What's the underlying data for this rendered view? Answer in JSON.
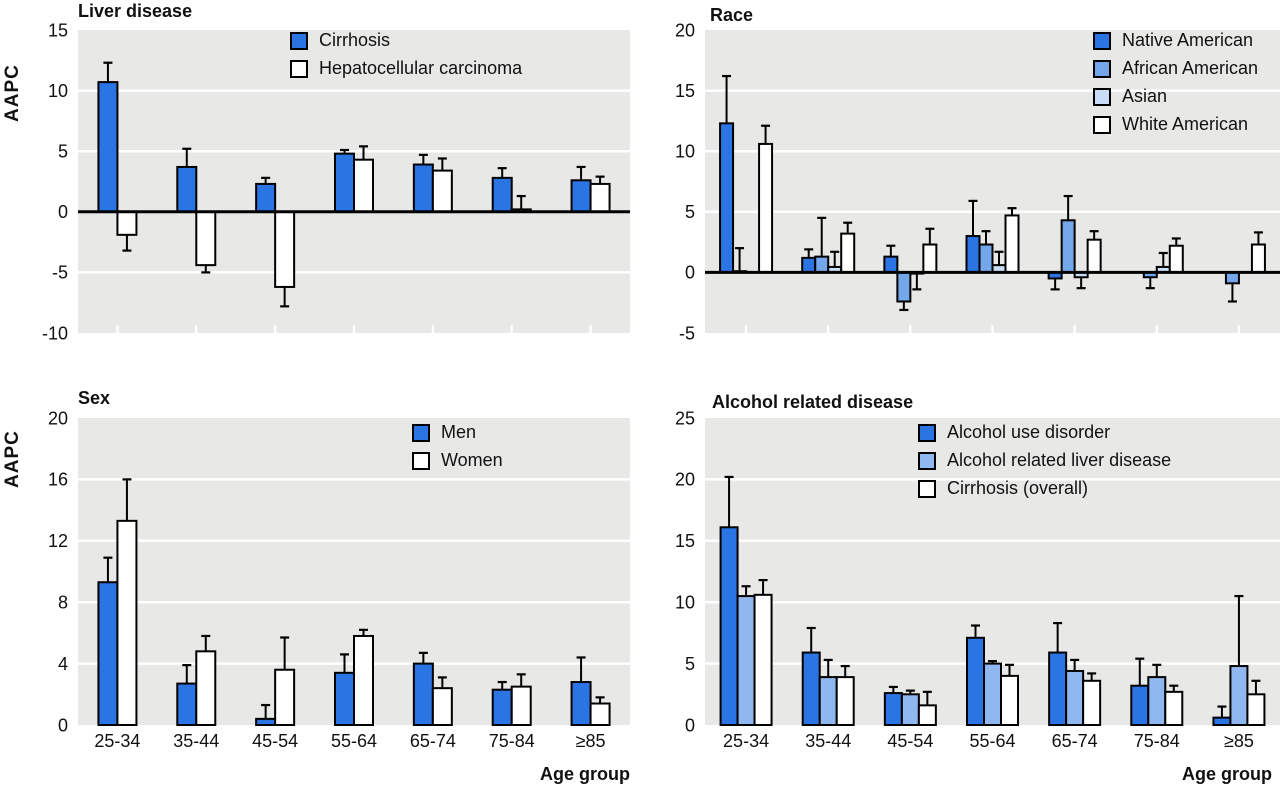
{
  "ylabel": "AAPC",
  "xlabel": "Age group",
  "categories": [
    "25-34",
    "35-44",
    "45-54",
    "55-64",
    "65-74",
    "75-84",
    "≥85"
  ],
  "colors": {
    "blue": "#2B74E4",
    "medium_blue": "#74A6EA",
    "pale_blue": "#C9DDF6",
    "light_blue": "#8FB8F0",
    "white": "#FFFFFF",
    "plot_bg": "#E8E8E7",
    "grid": "#FFFFFF",
    "axis": "#000000",
    "text": "#111111"
  },
  "chart_data": [
    {
      "type": "bar",
      "title": "Liver disease",
      "ylabel": "AAPC",
      "xlabel": "Age group",
      "ylim": [
        -10,
        15
      ],
      "yticks": [
        15,
        10,
        5,
        0,
        -5,
        -10
      ],
      "grid": true,
      "legend_position": "top-right-inside",
      "categories": [
        "25-34",
        "35-44",
        "45-54",
        "55-64",
        "65-74",
        "75-84",
        "≥85"
      ],
      "series": [
        {
          "name": "Cirrhosis",
          "color_key": "blue",
          "values": [
            10.7,
            3.7,
            2.3,
            4.8,
            3.9,
            2.8,
            2.6
          ],
          "ci": [
            12.3,
            5.2,
            2.8,
            5.1,
            4.7,
            3.6,
            3.7
          ]
        },
        {
          "name": "Hepatocellular carcinoma",
          "color_key": "white",
          "values": [
            -1.9,
            -4.4,
            -6.2,
            4.3,
            3.4,
            0.2,
            2.3
          ],
          "ci": [
            -3.2,
            -5.0,
            -7.8,
            5.4,
            4.4,
            1.3,
            2.9
          ]
        }
      ]
    },
    {
      "type": "bar",
      "title": "Race",
      "ylabel": "AAPC",
      "xlabel": "Age group",
      "ylim": [
        -5,
        20
      ],
      "yticks": [
        20,
        15,
        10,
        5,
        0,
        -5
      ],
      "grid": true,
      "legend_position": "top-right-inside",
      "categories": [
        "25-34",
        "35-44",
        "45-54",
        "55-64",
        "65-74",
        "75-84",
        "≥85"
      ],
      "series": [
        {
          "name": "Native American",
          "color_key": "blue",
          "values": [
            12.3,
            1.2,
            1.3,
            3.0,
            -0.5,
            null,
            null
          ],
          "ci": [
            16.2,
            1.9,
            2.2,
            5.9,
            -1.4,
            null,
            null
          ]
        },
        {
          "name": "African American",
          "color_key": "medium_blue",
          "values": [
            0.1,
            1.3,
            -2.4,
            2.3,
            4.3,
            -0.4,
            -0.9
          ],
          "ci": [
            2.0,
            4.5,
            -3.1,
            3.4,
            6.3,
            -1.3,
            -2.4
          ]
        },
        {
          "name": "Asian",
          "color_key": "pale_blue",
          "values": [
            null,
            0.45,
            -0.1,
            0.6,
            -0.4,
            0.45,
            null
          ],
          "ci": [
            null,
            1.7,
            -1.4,
            1.7,
            -1.3,
            1.6,
            null
          ]
        },
        {
          "name": "White American",
          "color_key": "white",
          "values": [
            10.6,
            3.2,
            2.3,
            4.7,
            2.7,
            2.2,
            2.3
          ],
          "ci": [
            12.1,
            4.1,
            3.6,
            5.3,
            3.4,
            2.8,
            3.3
          ]
        }
      ]
    },
    {
      "type": "bar",
      "title": "Sex",
      "ylabel": "AAPC",
      "xlabel": "Age group",
      "ylim": [
        0,
        20
      ],
      "yticks": [
        20,
        16,
        12,
        8,
        4,
        0
      ],
      "grid": true,
      "legend_position": "top-right-inside",
      "categories": [
        "25-34",
        "35-44",
        "45-54",
        "55-64",
        "65-74",
        "75-84",
        "≥85"
      ],
      "series": [
        {
          "name": "Men",
          "color_key": "blue",
          "values": [
            9.3,
            2.7,
            0.4,
            3.4,
            4.0,
            2.3,
            2.8
          ],
          "ci": [
            10.9,
            3.9,
            1.3,
            4.6,
            4.7,
            2.8,
            4.4
          ]
        },
        {
          "name": "Women",
          "color_key": "white",
          "values": [
            13.3,
            4.8,
            3.6,
            5.8,
            2.4,
            2.5,
            1.4
          ],
          "ci": [
            16.0,
            5.8,
            5.7,
            6.2,
            3.1,
            3.3,
            1.8
          ]
        }
      ]
    },
    {
      "type": "bar",
      "title": "Alcohol related disease",
      "ylabel": "AAPC",
      "xlabel": "Age group",
      "ylim": [
        0,
        25
      ],
      "yticks": [
        25,
        20,
        15,
        10,
        5,
        0
      ],
      "grid": true,
      "legend_position": "top-right-inside",
      "categories": [
        "25-34",
        "35-44",
        "45-54",
        "55-64",
        "65-74",
        "75-84",
        "≥85"
      ],
      "series": [
        {
          "name": "Alcohol use disorder",
          "color_key": "blue",
          "values": [
            16.1,
            5.9,
            2.6,
            7.1,
            5.9,
            3.2,
            0.6
          ],
          "ci": [
            20.2,
            7.9,
            3.1,
            8.1,
            8.3,
            5.4,
            1.5
          ]
        },
        {
          "name": "Alcohol related liver disease",
          "color_key": "light_blue",
          "values": [
            10.5,
            3.9,
            2.5,
            5.0,
            4.4,
            3.9,
            4.8
          ],
          "ci": [
            11.3,
            5.3,
            2.8,
            5.2,
            5.3,
            4.9,
            10.5
          ]
        },
        {
          "name": "Cirrhosis (overall)",
          "color_key": "white",
          "values": [
            10.6,
            3.9,
            1.6,
            4.0,
            3.6,
            2.7,
            2.5
          ],
          "ci": [
            11.8,
            4.8,
            2.7,
            4.9,
            4.2,
            3.2,
            3.6
          ]
        }
      ]
    }
  ]
}
